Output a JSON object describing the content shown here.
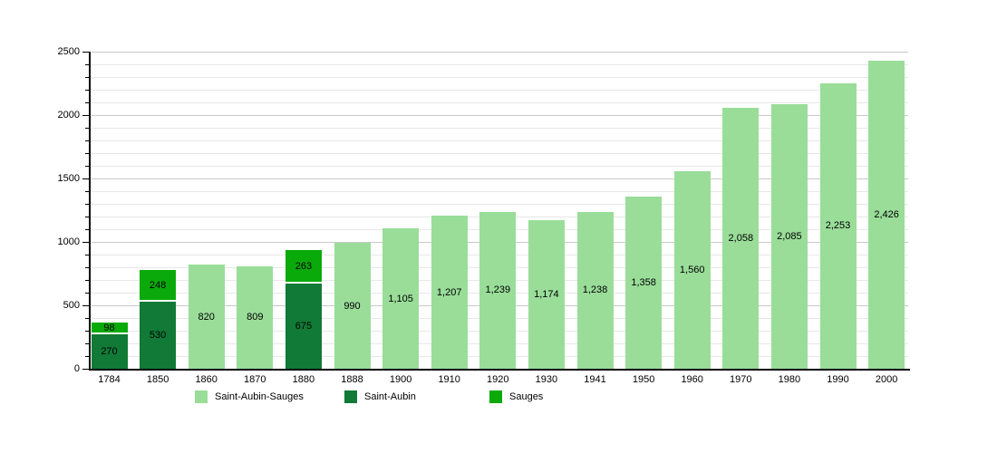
{
  "chart_data": {
    "type": "bar",
    "stacked": true,
    "title": "",
    "xlabel": "",
    "ylabel": "",
    "categories": [
      "1784",
      "1850",
      "1860",
      "1870",
      "1880",
      "1888",
      "1900",
      "1910",
      "1920",
      "1930",
      "1941",
      "1950",
      "1960",
      "1970",
      "1980",
      "1990",
      "2000"
    ],
    "series": [
      {
        "name": "Saint-Aubin-Sauges",
        "color": "#99DD99",
        "values": [
          null,
          null,
          820,
          809,
          null,
          990,
          1105,
          1207,
          1239,
          1174,
          1238,
          1358,
          1560,
          2058,
          2085,
          2253,
          2426
        ]
      },
      {
        "name": "Saint-Aubin",
        "color": "#107A36",
        "values": [
          270,
          530,
          null,
          null,
          675,
          null,
          null,
          null,
          null,
          null,
          null,
          null,
          null,
          null,
          null,
          null,
          null
        ]
      },
      {
        "name": "Sauges",
        "color": "#0AAA0A",
        "values": [
          98,
          248,
          null,
          null,
          263,
          null,
          null,
          null,
          null,
          null,
          null,
          null,
          null,
          null,
          null,
          null,
          null
        ]
      }
    ],
    "bar_value_labels": {
      "single": [
        "820",
        "809",
        "990",
        "1,105",
        "1,207",
        "1,239",
        "1,174",
        "1,238",
        "1,358",
        "1,560",
        "2,058",
        "2,085",
        "2,253",
        "2,426"
      ],
      "stacked_1784": [
        "270",
        "98"
      ],
      "stacked_1850": [
        "530",
        "248"
      ],
      "stacked_1880": [
        "675",
        "263"
      ]
    },
    "ylim": [
      0,
      2500
    ],
    "yticks": [
      0,
      500,
      1000,
      1500,
      2000,
      2500
    ],
    "minor_tick_step": 100,
    "grid": true,
    "legend_position": "bottom"
  },
  "legend": {
    "items": [
      {
        "label": "Saint-Aubin-Sauges",
        "color": "#99DD99"
      },
      {
        "label": "Saint-Aubin",
        "color": "#107A36"
      },
      {
        "label": "Sauges",
        "color": "#0AAA0A"
      }
    ]
  },
  "colors": {
    "background": "#ffffff",
    "axis": "#000000",
    "minor_grid": "#e7e7e7",
    "major_grid": "#c9c9c9",
    "text": "#000000"
  }
}
